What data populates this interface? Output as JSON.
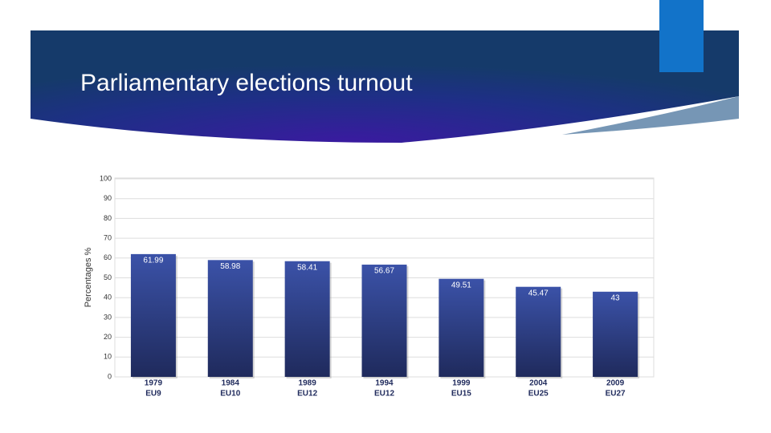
{
  "header": {
    "title": "Parliamentary elections turnout"
  },
  "chart_data": {
    "type": "bar",
    "y_label": "Percentages %",
    "categories": [
      [
        "1979",
        "EU9"
      ],
      [
        "1984",
        "EU10"
      ],
      [
        "1989",
        "EU12"
      ],
      [
        "1994",
        "EU12"
      ],
      [
        "1999",
        "EU15"
      ],
      [
        "2004",
        "EU25"
      ],
      [
        "2009",
        "EU27"
      ]
    ],
    "values": [
      61.99,
      58.98,
      58.41,
      56.67,
      49.51,
      45.47,
      43
    ],
    "color": "#3b52a8",
    "ylim": [
      0,
      100
    ],
    "yticks": [
      0,
      10,
      20,
      30,
      40,
      50,
      60,
      70,
      80,
      90,
      100
    ],
    "grid": true
  }
}
